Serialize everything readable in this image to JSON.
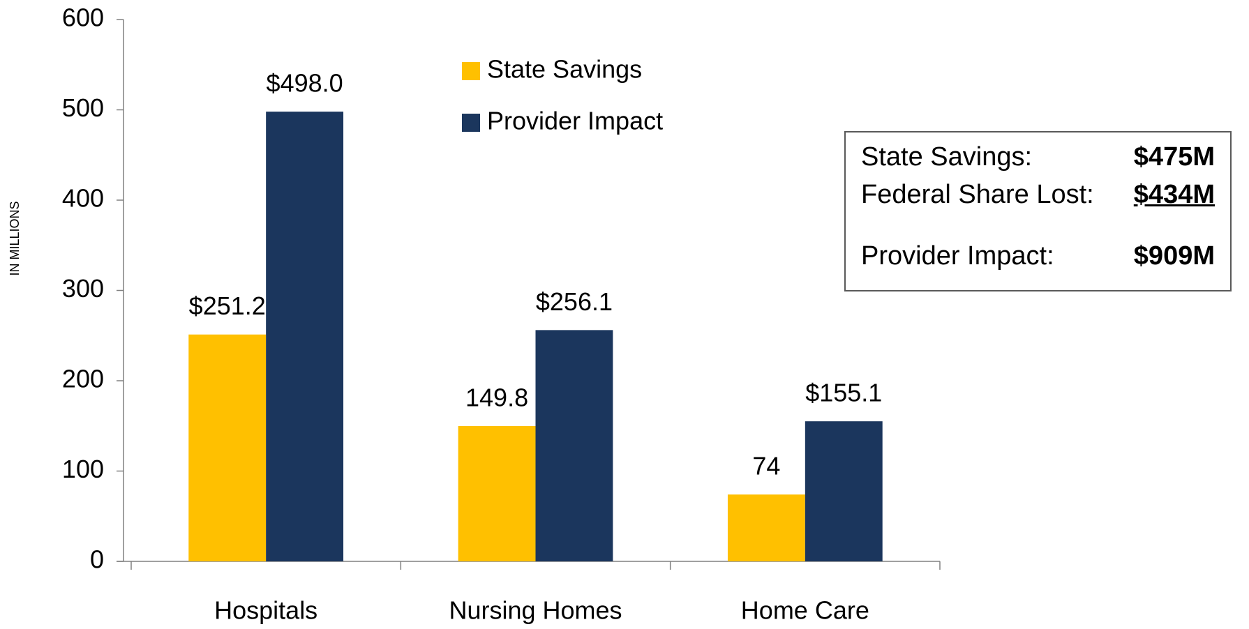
{
  "chart_data": {
    "type": "bar",
    "y_axis_label": "IN MILLIONS",
    "categories": [
      "Hospitals",
      "Nursing Homes",
      "Home Care"
    ],
    "series": [
      {
        "name": "State Savings",
        "color": "#ffc000",
        "values": [
          251.2,
          149.8,
          74
        ],
        "value_labels": [
          "$251.2",
          "149.8",
          "74"
        ]
      },
      {
        "name": "Provider Impact",
        "color": "#1b365d",
        "values": [
          498.0,
          256.1,
          155.1
        ],
        "value_labels": [
          "$498.0",
          "$256.1",
          "$155.1"
        ]
      }
    ],
    "ylim": [
      0,
      600
    ],
    "yticks": [
      0,
      100,
      200,
      300,
      400,
      500,
      600
    ],
    "grid": false,
    "legend": "top"
  },
  "summary_box": {
    "rows": [
      {
        "label": "State Savings:",
        "value": "$475M"
      },
      {
        "label": "Federal Share Lost:",
        "value": "$434M"
      },
      {
        "label": "Provider Impact:",
        "value": "$909M"
      }
    ]
  }
}
